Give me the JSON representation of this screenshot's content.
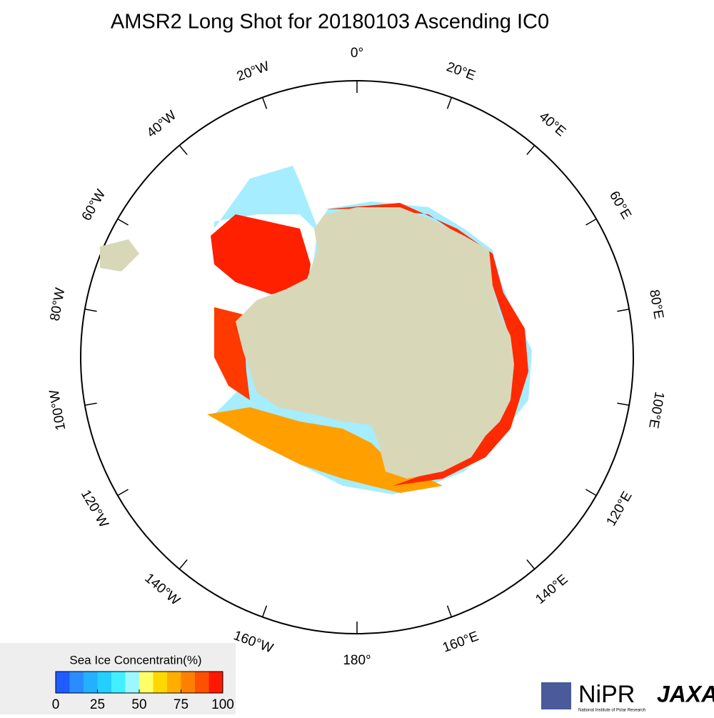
{
  "title": "AMSR2 Long Shot for 20180103 Ascending IC0",
  "longitude_labels": [
    "0°",
    "20°E",
    "40°E",
    "60°E",
    "80°E",
    "100°E",
    "120°E",
    "140°E",
    "160°E",
    "180°",
    "160°W",
    "140°W",
    "120°W",
    "100°W",
    "80°W",
    "60°W",
    "40°W",
    "20°W"
  ],
  "colorbar": {
    "title": "Sea Ice Concentratin(%)",
    "lim": [
      0,
      100
    ],
    "ticks": [
      0,
      25,
      50,
      75,
      100
    ],
    "colors": [
      "#1e5cff",
      "#2a8cff",
      "#22b0ff",
      "#22d0ff",
      "#40f0ff",
      "#9cf8ff",
      "#ffff66",
      "#ffd800",
      "#ffae00",
      "#ff8000",
      "#ff5000",
      "#ff1800"
    ]
  },
  "logos": {
    "nipr": "NiPR",
    "nipr_caption": "National Institute of Polar Research",
    "jaxa": "JAXA"
  }
}
